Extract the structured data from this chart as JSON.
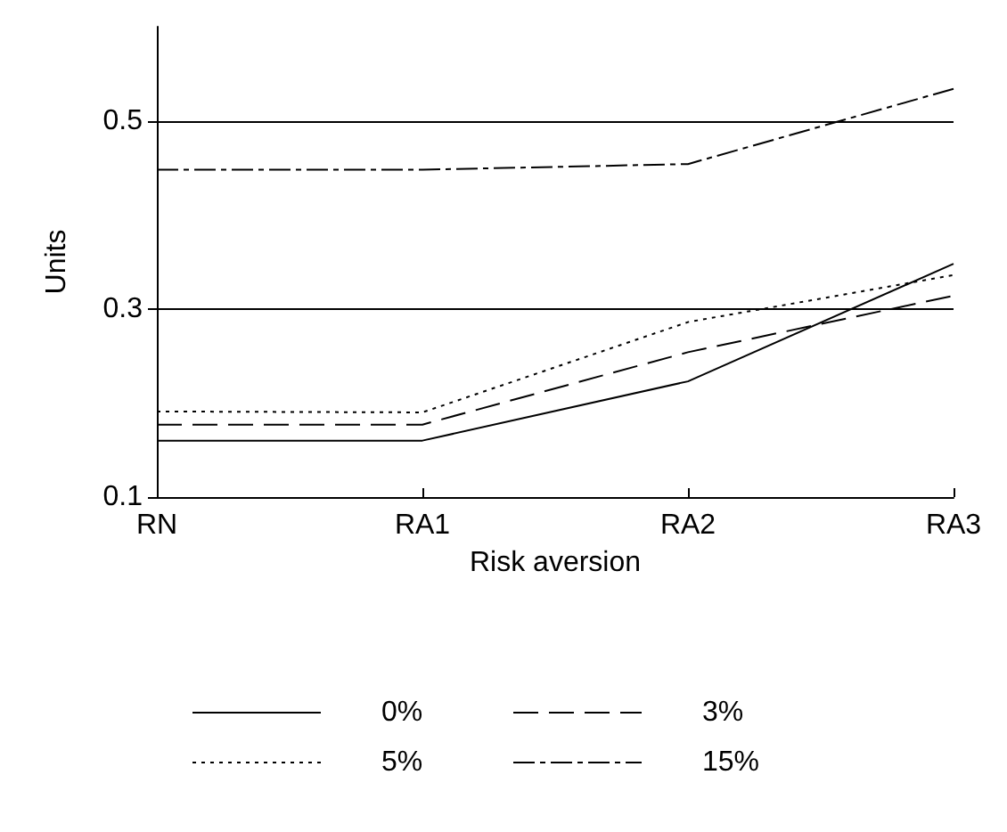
{
  "chart_data": {
    "type": "line",
    "xlabel": "Risk aversion",
    "ylabel": "Units",
    "categories": [
      "RN",
      "RA1",
      "RA2",
      "RA3"
    ],
    "ylim": [
      0.1,
      0.6
    ],
    "yticks": [
      0.1,
      0.3,
      0.5
    ],
    "grid": "y",
    "legend": "bottom",
    "marker": "none",
    "series": [
      {
        "name": "0%",
        "color": "#000000",
        "line_style": "solid",
        "values": [
          0.16,
          0.16,
          0.223,
          0.348
        ]
      },
      {
        "name": "3%",
        "color": "#000000",
        "line_style": "dashed",
        "values": [
          0.177,
          0.177,
          0.254,
          0.314
        ]
      },
      {
        "name": "5%",
        "color": "#000000",
        "line_style": "dotted",
        "values": [
          0.191,
          0.19,
          0.286,
          0.336
        ]
      },
      {
        "name": "15%",
        "color": "#000000",
        "line_style": "dashdot",
        "values": [
          0.448,
          0.448,
          0.454,
          0.534
        ]
      }
    ]
  }
}
